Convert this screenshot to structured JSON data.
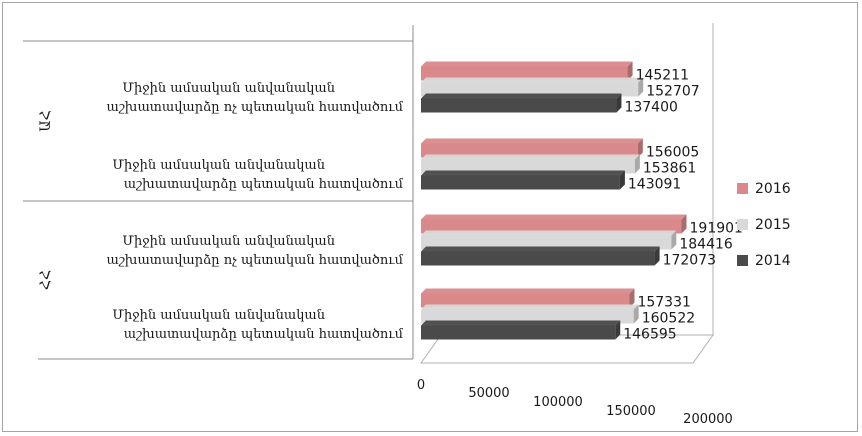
{
  "chart_data": {
    "type": "bar",
    "orientation": "horizontal",
    "three_d": true,
    "groups": [
      {
        "label": "ՀՀ",
        "categories": [
          {
            "line1": "Միջին ամսական անվանական",
            "line2": "աշխատավարձը պետական հատվածում"
          },
          {
            "line1": "Միջին ամսական անվանական",
            "line2": "աշխատավարձը ոչ պետական հատվածում"
          }
        ]
      },
      {
        "label": "ԱՀ",
        "categories": [
          {
            "line1": "Միջին ամսական անվանական",
            "line2": "աշխատավարձը պետական հատվածում"
          },
          {
            "line1": "Միջին ամսական անվանական",
            "line2": "աշխատավարձը ոչ պետական հատվածում"
          }
        ]
      }
    ],
    "series": [
      {
        "name": "2016",
        "color": "#d9898a",
        "values": [
          157331,
          191901,
          156005,
          145211
        ]
      },
      {
        "name": "2015",
        "color": "#d9d9d9",
        "values": [
          160522,
          184416,
          153861,
          152707
        ]
      },
      {
        "name": "2014",
        "color": "#4a4a4a",
        "values": [
          146595,
          172073,
          143091,
          137400
        ]
      }
    ],
    "xlim": [
      0,
      200000
    ],
    "xticks": [
      "0",
      "50000",
      "100000",
      "150000",
      "200000"
    ],
    "legend_position": "right",
    "grid": false
  }
}
